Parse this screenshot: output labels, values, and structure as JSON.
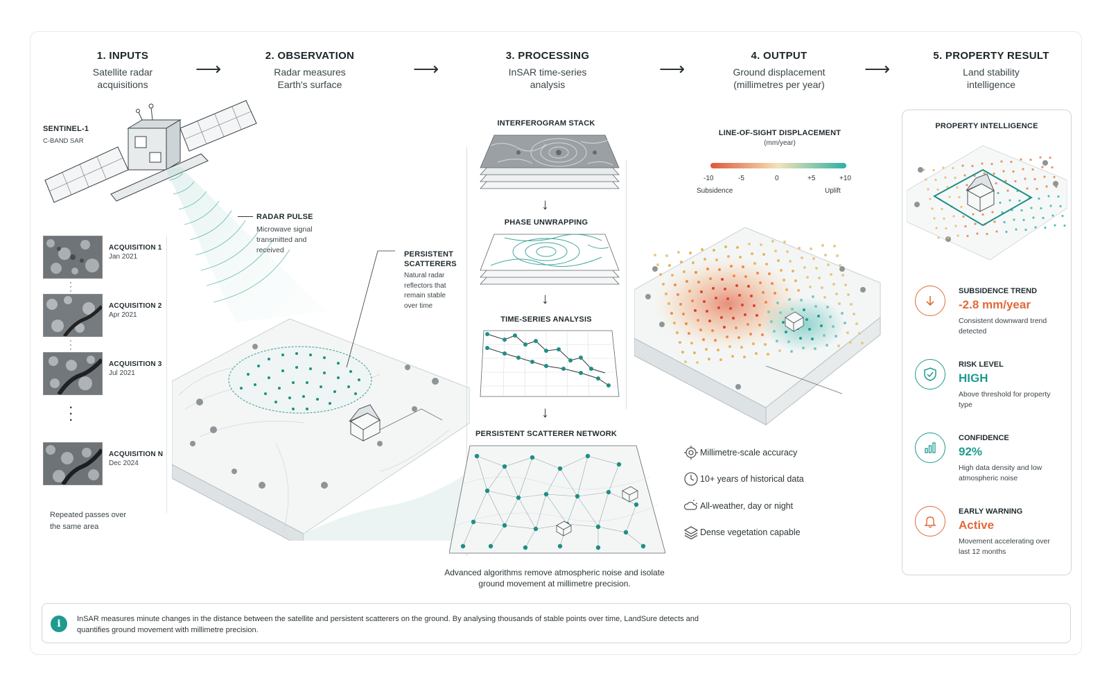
{
  "steps": [
    {
      "title": "1. INPUTS",
      "subtitle": "Satellite radar acquisitions"
    },
    {
      "title": "2. OBSERVATION",
      "subtitle": "Radar measures Earth's surface"
    },
    {
      "title": "3. PROCESSING",
      "subtitle": "InSAR time-series analysis"
    },
    {
      "title": "4. OUTPUT",
      "subtitle": "Ground displacement (millimetres per year)"
    },
    {
      "title": "5. PROPERTY RESULT",
      "subtitle": "Land stability intelligence"
    }
  ],
  "satellite": {
    "name": "SENTINEL-1",
    "band": "C-BAND SAR"
  },
  "acquisitions": [
    {
      "label": "ACQUISITION 1",
      "date": "Jan 2021"
    },
    {
      "label": "ACQUISITION 2",
      "date": "Apr 2021"
    },
    {
      "label": "ACQUISITION 3",
      "date": "Jul 2021"
    },
    {
      "label": "ACQUISITION N",
      "date": "Dec 2024"
    }
  ],
  "inputs_note": "Repeated passes over the same area",
  "radar_pulse": {
    "title": "RADAR PULSE",
    "desc": "Microwave signal transmitted and received"
  },
  "scatterers": {
    "title": "PERSISTENT SCATTERERS",
    "desc": "Natural radar reflectors that remain stable over time"
  },
  "processing": {
    "stages": [
      "INTERFEROGRAM STACK",
      "PHASE UNWRAPPING",
      "TIME-SERIES ANALYSIS",
      "PERSISTENT SCATTERER NETWORK"
    ],
    "note": "Advanced algorithms remove atmospheric noise and isolate ground movement at millimetre precision."
  },
  "displacement": {
    "title": "LINE-OF-SIGHT DISPLACEMENT",
    "unit": "(mm/year)",
    "ticks": [
      "-10",
      "-5",
      "0",
      "+5",
      "+10"
    ],
    "left_label": "Subsidence",
    "right_label": "Uplift",
    "colors": {
      "subsidence": "#e0573a",
      "neutral": "#f2e3b8",
      "uplift": "#2fb0a5"
    }
  },
  "features": [
    {
      "icon": "target-icon",
      "text": "Millimetre-scale accuracy"
    },
    {
      "icon": "clock-icon",
      "text": "10+ years of historical data"
    },
    {
      "icon": "weather-icon",
      "text": "All-weather, day or night"
    },
    {
      "icon": "layers-icon",
      "text": "Dense vegetation capable"
    }
  ],
  "property": {
    "title": "PROPERTY INTELLIGENCE",
    "metrics": [
      {
        "icon": "arrow-down-icon",
        "title": "SUBSIDENCE TREND",
        "value": "-2.8 mm/year",
        "desc": "Consistent downward trend detected",
        "color": "#e0693a"
      },
      {
        "icon": "shield-icon",
        "title": "RISK LEVEL",
        "value": "HIGH",
        "desc": "Above threshold for property type",
        "color": "#1e9a8f"
      },
      {
        "icon": "bar-chart-icon",
        "title": "CONFIDENCE",
        "value": "92%",
        "desc": "High data density and low atmospheric noise",
        "color": "#1e9a8f"
      },
      {
        "icon": "bell-icon",
        "title": "EARLY WARNING",
        "value": "Active",
        "desc": "Movement accelerating over last 12 months",
        "color": "#e0693a"
      }
    ]
  },
  "info": "InSAR measures minute changes in the distance between the satellite and persistent scatterers on the ground. By analysing thousands of stable points over time, LandSure detects and quantifies ground movement with millimetre precision."
}
